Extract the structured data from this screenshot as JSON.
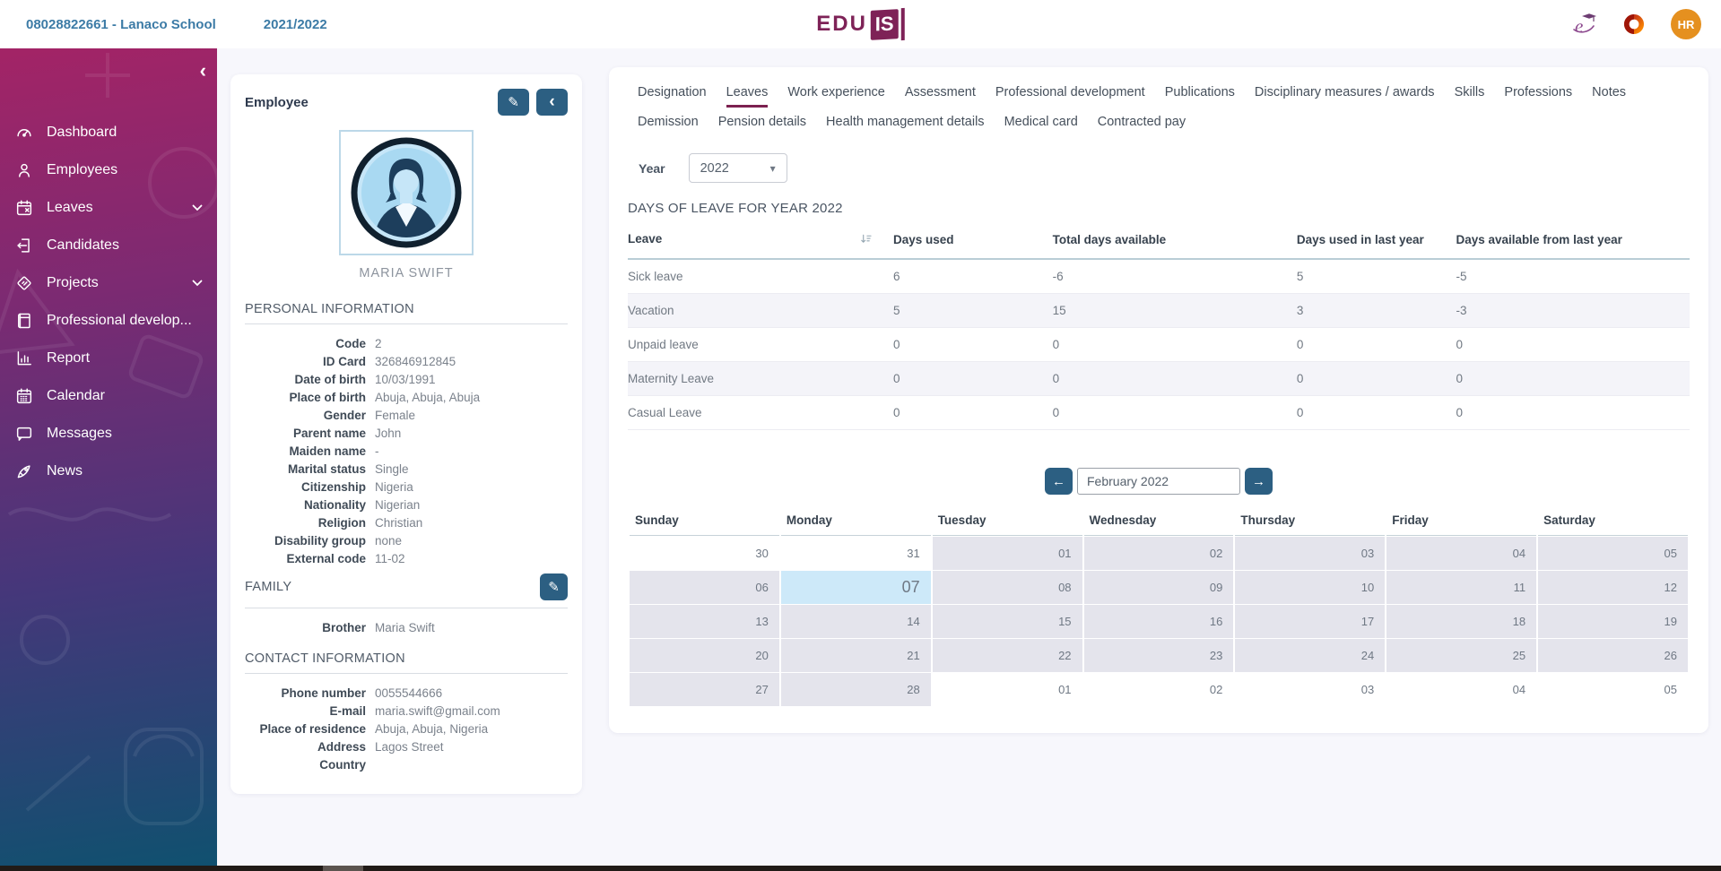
{
  "topbar": {
    "school_id_name": "08028822661 - Lanaco School",
    "school_year": "2021/2022",
    "logo": {
      "edu": "EDU",
      "is": "IS"
    },
    "user_initials": "HR"
  },
  "sidebar": {
    "items": [
      {
        "id": "dashboard",
        "label": "Dashboard",
        "icon": "dashboard-icon",
        "expandable": false
      },
      {
        "id": "employees",
        "label": "Employees",
        "icon": "employees-icon",
        "expandable": false
      },
      {
        "id": "leaves",
        "label": "Leaves",
        "icon": "leaves-calendar-icon",
        "expandable": true
      },
      {
        "id": "candidates",
        "label": "Candidates",
        "icon": "candidates-icon",
        "expandable": false
      },
      {
        "id": "projects",
        "label": "Projects",
        "icon": "projects-icon",
        "expandable": true
      },
      {
        "id": "professional-development",
        "label": "Professional develop...",
        "icon": "professional-development-icon",
        "expandable": false
      },
      {
        "id": "report",
        "label": "Report",
        "icon": "report-icon",
        "expandable": false
      },
      {
        "id": "calendar",
        "label": "Calendar",
        "icon": "calendar-icon",
        "expandable": false
      },
      {
        "id": "messages",
        "label": "Messages",
        "icon": "messages-icon",
        "expandable": false
      },
      {
        "id": "news",
        "label": "News",
        "icon": "news-icon",
        "expandable": false
      }
    ]
  },
  "employee": {
    "card_title": "Employee",
    "name": "MARIA SWIFT",
    "sections": {
      "personal": {
        "heading": "PERSONAL INFORMATION",
        "rows": [
          [
            "Code",
            "2"
          ],
          [
            "ID Card",
            "326846912845"
          ],
          [
            "Date of birth",
            "10/03/1991"
          ],
          [
            "Place of birth",
            "Abuja, Abuja, Abuja"
          ],
          [
            "Gender",
            "Female"
          ],
          [
            "Parent name",
            "John"
          ],
          [
            "Maiden name",
            "-"
          ],
          [
            "Marital status",
            "Single"
          ],
          [
            "Citizenship",
            "Nigeria"
          ],
          [
            "Nationality",
            "Nigerian"
          ],
          [
            "Religion",
            "Christian"
          ],
          [
            "Disability group",
            "none"
          ],
          [
            "External code",
            "11-02"
          ]
        ]
      },
      "family": {
        "heading": "FAMILY",
        "rows": [
          [
            "Brother",
            "Maria Swift"
          ]
        ]
      },
      "contact": {
        "heading": "CONTACT INFORMATION",
        "rows": [
          [
            "Phone number",
            "0055544666"
          ],
          [
            "E-mail",
            "maria.swift@gmail.com"
          ],
          [
            "Place of residence",
            "Abuja, Abuja, Nigeria"
          ],
          [
            "Address",
            "Lagos Street"
          ],
          [
            "Country",
            ""
          ]
        ]
      }
    }
  },
  "tabs": {
    "active": "Leaves",
    "row1": [
      "Designation",
      "Leaves",
      "Work experience",
      "Assessment",
      "Professional development",
      "Publications",
      "Disciplinary measures / awards",
      "Skills",
      "Professions",
      "Notes"
    ],
    "row2": [
      "Demission",
      "Pension details",
      "Health management details",
      "Medical card",
      "Contracted pay"
    ]
  },
  "panel": {
    "year_label": "Year",
    "year_value": "2022",
    "heading": "DAYS OF LEAVE FOR YEAR 2022",
    "table": {
      "columns": [
        "Leave",
        "Days used",
        "Total days available",
        "Days used in last year",
        "Days available from last year"
      ],
      "rows": [
        [
          "Sick leave",
          "6",
          "-6",
          "5",
          "-5"
        ],
        [
          "Vacation",
          "5",
          "15",
          "3",
          "-3"
        ],
        [
          "Unpaid leave",
          "0",
          "0",
          "0",
          "0"
        ],
        [
          "Maternity Leave",
          "0",
          "0",
          "0",
          "0"
        ],
        [
          "Casual Leave",
          "0",
          "0",
          "0",
          "0"
        ]
      ]
    },
    "calendar": {
      "month_label": "February 2022",
      "day_names": [
        "Sunday",
        "Monday",
        "Tuesday",
        "Wednesday",
        "Thursday",
        "Friday",
        "Saturday"
      ],
      "weeks": [
        [
          {
            "d": "30",
            "t": "other"
          },
          {
            "d": "31",
            "t": "other"
          },
          {
            "d": "01",
            "t": "month"
          },
          {
            "d": "02",
            "t": "month"
          },
          {
            "d": "03",
            "t": "month"
          },
          {
            "d": "04",
            "t": "month"
          },
          {
            "d": "05",
            "t": "month"
          }
        ],
        [
          {
            "d": "06",
            "t": "month"
          },
          {
            "d": "07",
            "t": "selected"
          },
          {
            "d": "08",
            "t": "month"
          },
          {
            "d": "09",
            "t": "month"
          },
          {
            "d": "10",
            "t": "month"
          },
          {
            "d": "11",
            "t": "month"
          },
          {
            "d": "12",
            "t": "month"
          }
        ],
        [
          {
            "d": "13",
            "t": "month"
          },
          {
            "d": "14",
            "t": "month"
          },
          {
            "d": "15",
            "t": "month"
          },
          {
            "d": "16",
            "t": "month"
          },
          {
            "d": "17",
            "t": "month"
          },
          {
            "d": "18",
            "t": "month"
          },
          {
            "d": "19",
            "t": "month"
          }
        ],
        [
          {
            "d": "20",
            "t": "month"
          },
          {
            "d": "21",
            "t": "month"
          },
          {
            "d": "22",
            "t": "month"
          },
          {
            "d": "23",
            "t": "month"
          },
          {
            "d": "24",
            "t": "month"
          },
          {
            "d": "25",
            "t": "month"
          },
          {
            "d": "26",
            "t": "month"
          }
        ],
        [
          {
            "d": "27",
            "t": "month"
          },
          {
            "d": "28",
            "t": "month"
          },
          {
            "d": "01",
            "t": "other"
          },
          {
            "d": "02",
            "t": "other"
          },
          {
            "d": "03",
            "t": "other"
          },
          {
            "d": "04",
            "t": "other"
          },
          {
            "d": "05",
            "t": "other"
          }
        ]
      ]
    }
  },
  "glyphs": {
    "pencil": "✎",
    "chevron_left": "‹",
    "caret_down": "▾",
    "arrow_left": "←",
    "arrow_right": "→"
  },
  "colors": {
    "accent_teal": "#2c5f82",
    "brand_purple": "#7e2257",
    "active_tab_underline": "#7c2150",
    "selected_day_bg": "#cde9f9",
    "current_month_day_bg": "#e4e4ec",
    "avatar_bg": "#e5901f",
    "topbar_text": "#3c7ba6",
    "sidebar_gradient_top": "#a32466",
    "sidebar_gradient_bottom": "#0f516f"
  }
}
